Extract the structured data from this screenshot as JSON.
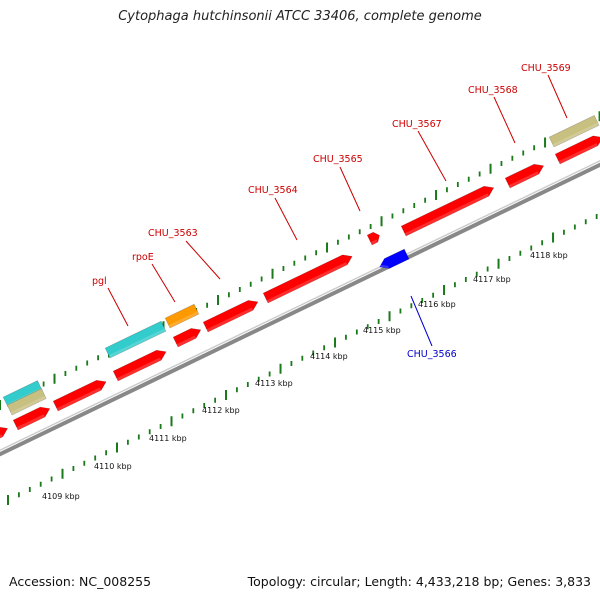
{
  "header": {
    "title": "Cytophaga hutchinsonii ATCC 33406, complete genome"
  },
  "footer": {
    "accession": "Accession: NC_008255",
    "summary": "Topology: circular; Length: 4,433,218 bp; Genes: 3,833"
  },
  "colors": {
    "forward_feature": "#ff0000",
    "reverse_feature": "#0000ff",
    "cyan_feature": "#33cccc",
    "orange_feature": "#ff9900",
    "khaki_feature": "#c8c080",
    "tick": "#1a7a1a",
    "backbone": "#999999",
    "forward_label": "#cc0000",
    "reverse_label": "#0000cc"
  },
  "ruler": {
    "ticks": [
      "4109 kbp",
      "4110 kbp",
      "4111 kbp",
      "4112 kbp",
      "4113 kbp",
      "4114 kbp",
      "4115 kbp",
      "4116 kbp",
      "4117 kbp",
      "4118 kbp"
    ]
  },
  "gene_labels": [
    {
      "name": "pgl",
      "strand": "forward"
    },
    {
      "name": "rpoE",
      "strand": "forward"
    },
    {
      "name": "CHU_3563",
      "strand": "forward"
    },
    {
      "name": "CHU_3564",
      "strand": "forward"
    },
    {
      "name": "CHU_3565",
      "strand": "forward"
    },
    {
      "name": "CHU_3567",
      "strand": "forward"
    },
    {
      "name": "CHU_3568",
      "strand": "forward"
    },
    {
      "name": "CHU_3569",
      "strand": "forward"
    },
    {
      "name": "CHU_3566",
      "strand": "reverse"
    }
  ]
}
